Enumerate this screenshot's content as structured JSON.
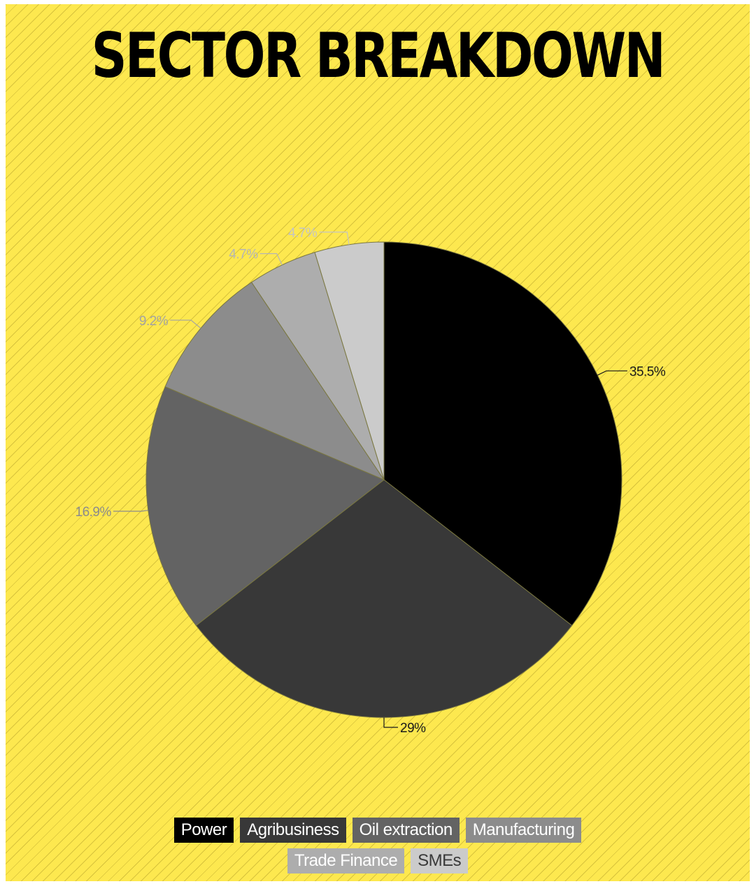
{
  "chart_data": {
    "type": "pie",
    "title": "SECTOR BREAKDOWN",
    "slices": [
      {
        "label": "Power",
        "value": 35.5,
        "display": "35.5%",
        "color": "#000000",
        "text_color": "#ffffff"
      },
      {
        "label": "Agribusiness",
        "value": 29,
        "display": "29%",
        "color": "#383838",
        "text_color": "#ffffff"
      },
      {
        "label": "Oil extraction",
        "value": 16.9,
        "display": "16.9%",
        "color": "#636363",
        "text_color": "#ffffff"
      },
      {
        "label": "Manufacturing",
        "value": 9.2,
        "display": "9.2%",
        "color": "#8c8c8c",
        "text_color": "#ffffff"
      },
      {
        "label": "Trade Finance",
        "value": 4.7,
        "display": "4.7%",
        "color": "#adadad",
        "text_color": "#ffffff"
      },
      {
        "label": "SMEs",
        "value": 4.7,
        "display": "4.7%",
        "color": "#cbcbcb",
        "text_color": "#3a3a3a"
      }
    ],
    "label_colors": [
      "#1a1a1a",
      "#1a1a1a",
      "#8c8c8c",
      "#a3a3a3",
      "#b5b5b5",
      "#c4c4c4"
    ],
    "legend_position": "bottom",
    "background_color": "#fde84f"
  }
}
